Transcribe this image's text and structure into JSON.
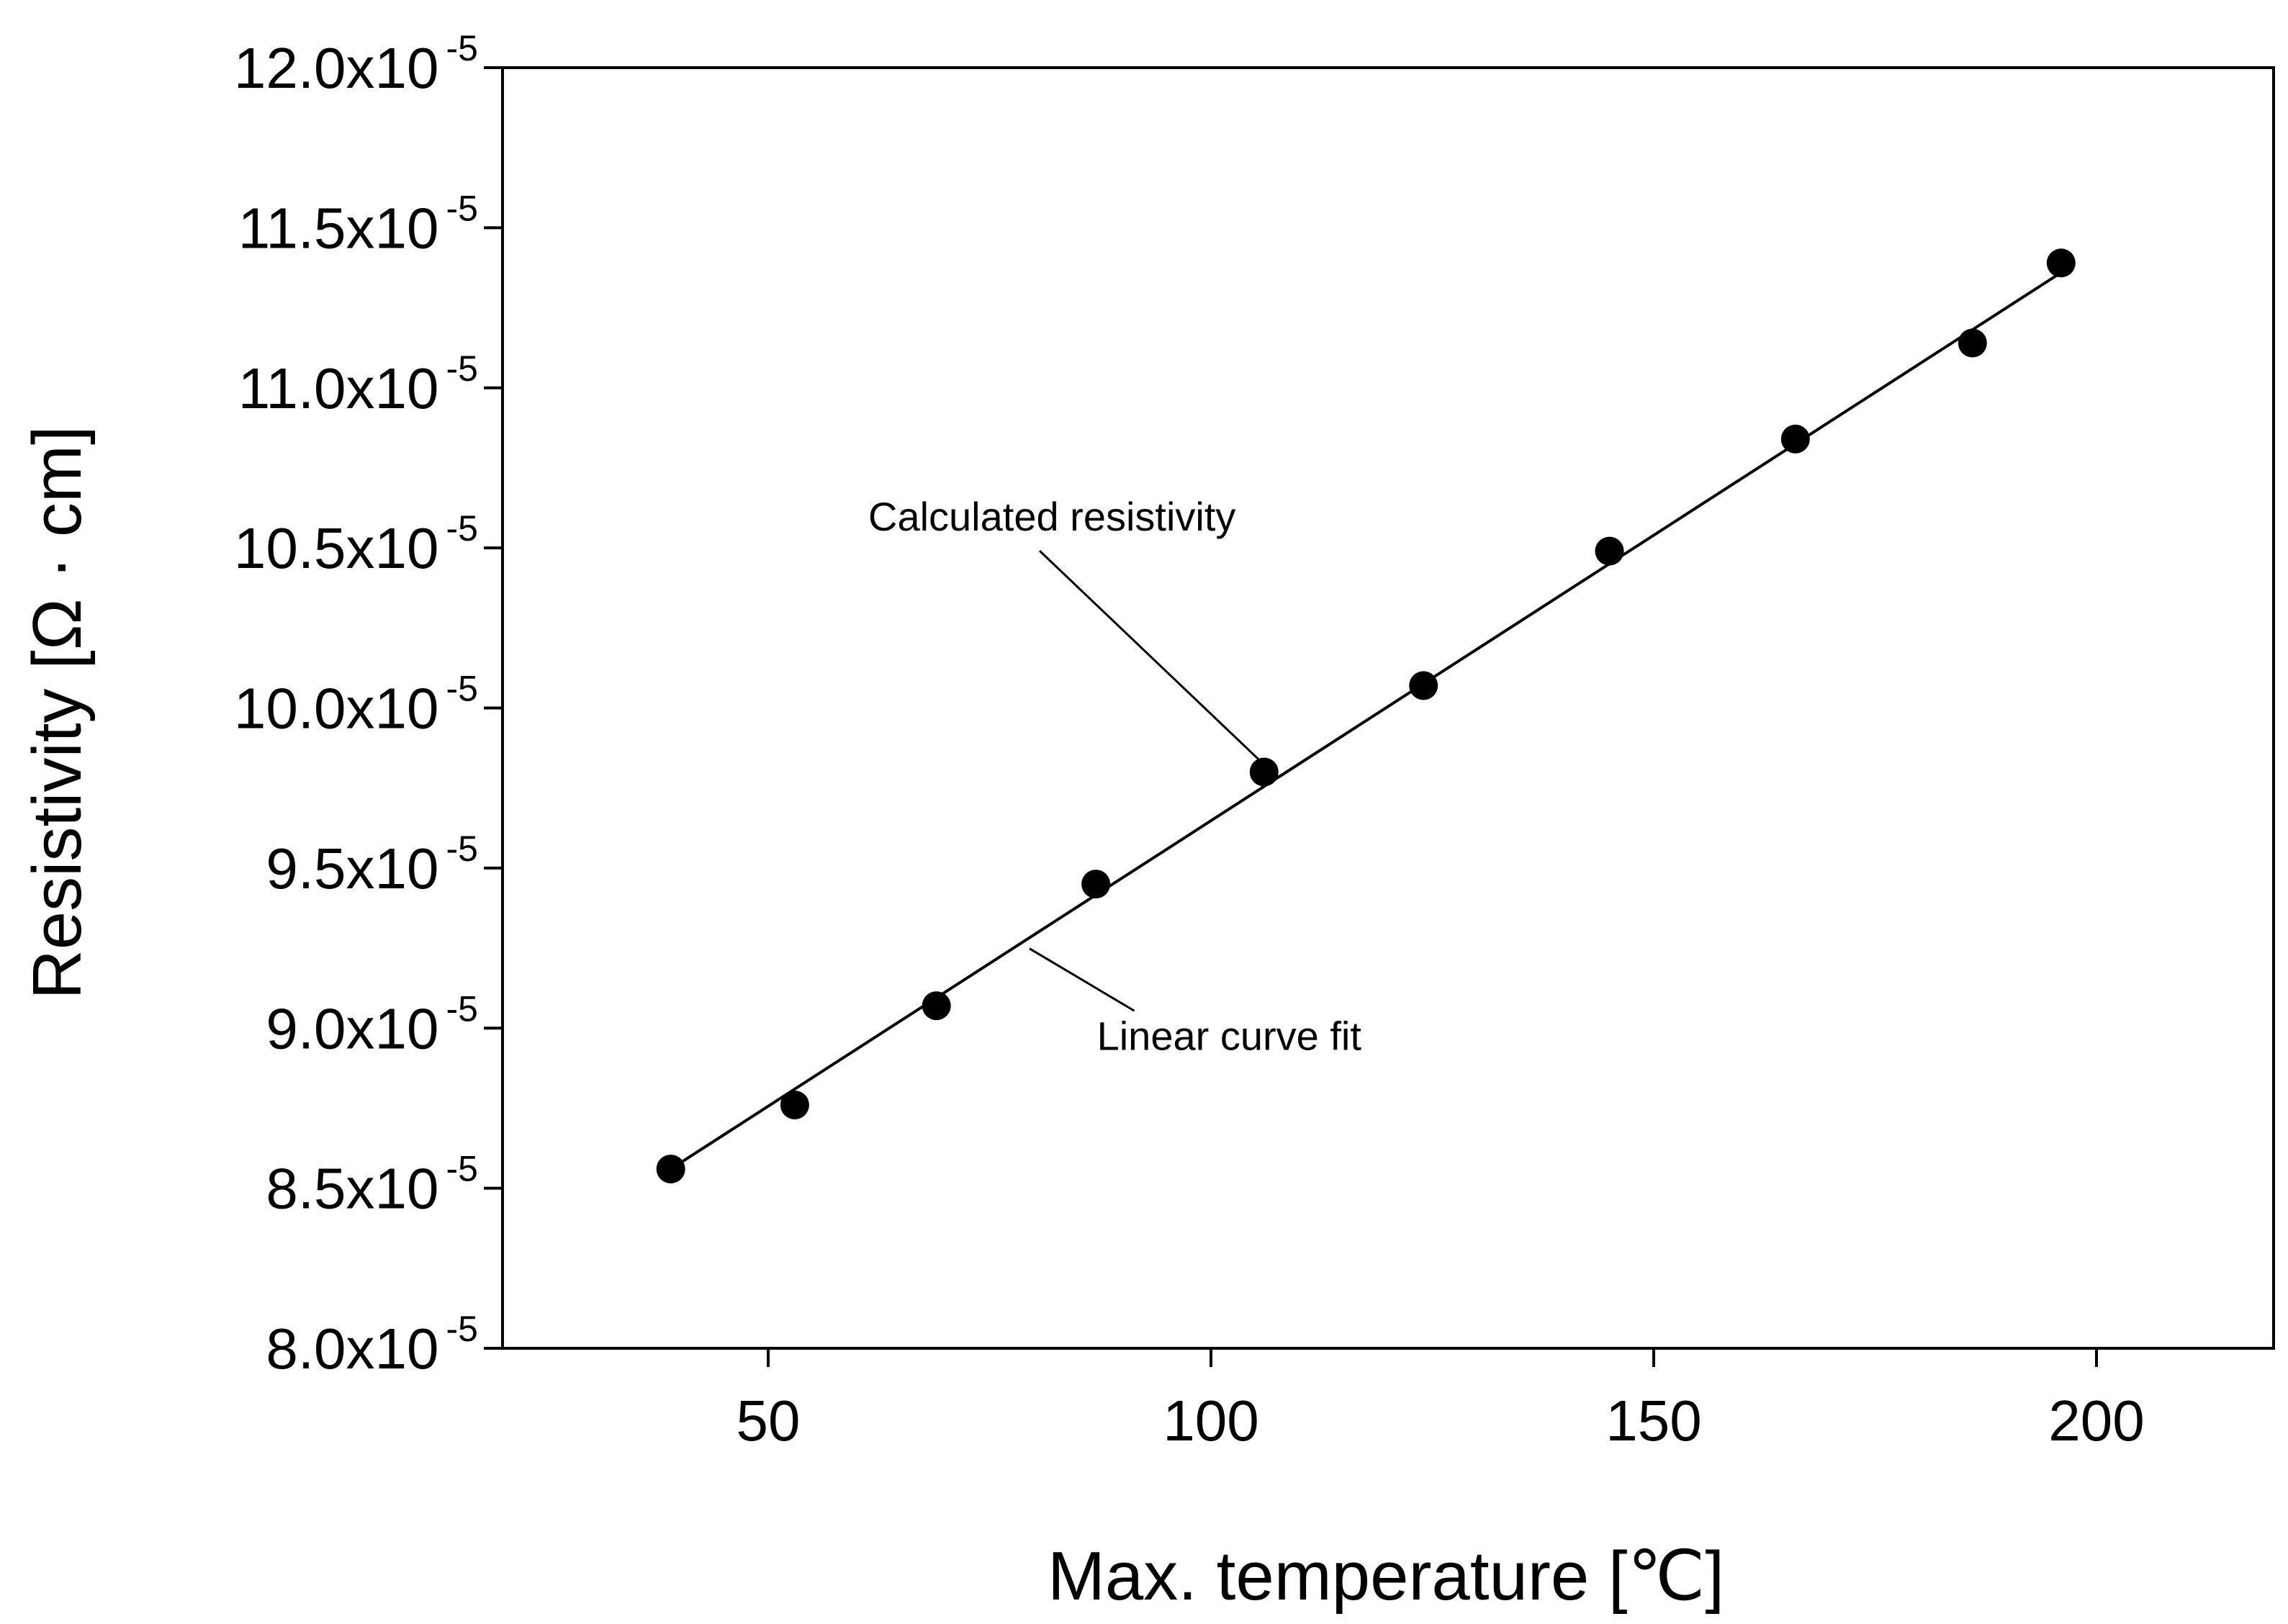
{
  "chart_data": {
    "type": "scatter",
    "title": "",
    "xlabel": "Max. temperature [℃]",
    "ylabel": "Resistivity [Ω · cm]",
    "xlim": [
      20,
      220
    ],
    "ylim": [
      8e-05,
      0.00012
    ],
    "grid": false,
    "x_ticks": [
      50,
      100,
      150,
      200
    ],
    "x_tick_labels": [
      "50",
      "100",
      "150",
      "200"
    ],
    "y_ticks": [
      8e-05,
      8.5e-05,
      9e-05,
      9.5e-05,
      0.0001,
      0.000105,
      0.00011,
      0.000115,
      0.00012
    ],
    "y_tick_mantissas": [
      "8.0x10",
      "8.5x10",
      "9.0x10",
      "9.5x10",
      "10.0x10",
      "10.5x10",
      "11.0x10",
      "11.5x10",
      "12.0x10"
    ],
    "y_tick_exponent": "-5",
    "series": [
      {
        "name": "Calculated resistivity",
        "mode": "markers",
        "color": "#000000",
        "x": [
          39,
          53,
          69,
          87,
          106,
          124,
          145,
          166,
          186,
          196
        ],
        "y": [
          8.56e-05,
          8.76e-05,
          9.07e-05,
          9.45e-05,
          9.8e-05,
          0.0001007,
          0.0001049,
          0.0001084,
          0.0001114,
          0.0001139
        ]
      },
      {
        "name": "Linear curve fit",
        "mode": "line",
        "color": "#000000",
        "x": [
          39,
          196
        ],
        "y": [
          8.56e-05,
          0.0001136
        ]
      }
    ],
    "annotations": [
      {
        "text": "Calculated resistivity",
        "target_series": "Calculated resistivity",
        "target_x": 106,
        "target_y": 9.8e-05,
        "anchor_x": 80,
        "anchor_y": 0.000105
      },
      {
        "text": "Linear curve fit",
        "target_series": "Linear curve fit",
        "target_x": 80,
        "target_y": 9.28e-05,
        "anchor_x": 92,
        "anchor_y": 9e-05
      }
    ]
  }
}
